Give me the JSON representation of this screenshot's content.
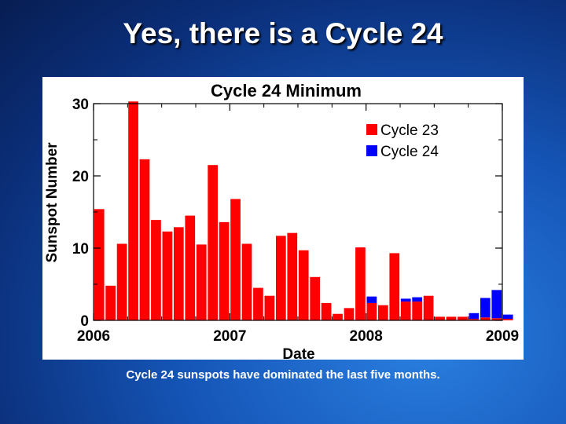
{
  "slide": {
    "title": "Yes, there is a Cycle 24",
    "caption": "Cycle 24 sunspots have dominated the last five months."
  },
  "colors": {
    "cycle23": "#ff0000",
    "cycle24": "#0000ff",
    "axis": "#000000"
  },
  "chart_data": {
    "type": "bar",
    "stacked": true,
    "title": "Cycle 24 Minimum",
    "xlabel": "Date",
    "ylabel": "Sunspot Number",
    "ylim": [
      0,
      30
    ],
    "yticks": [
      0,
      10,
      20,
      30
    ],
    "xlim": [
      2006,
      2009
    ],
    "xticks": [
      "2006",
      "2007",
      "2008",
      "2009"
    ],
    "bar_interval": "monthly",
    "legend": {
      "position": "top-right",
      "entries": [
        "Cycle 23",
        "Cycle 24"
      ]
    },
    "series": [
      {
        "name": "Cycle 23",
        "values": [
          15.4,
          4.8,
          10.6,
          30.3,
          22.3,
          13.9,
          12.3,
          12.9,
          14.5,
          10.5,
          21.5,
          13.6,
          16.8,
          10.6,
          4.5,
          3.4,
          11.7,
          12.1,
          9.7,
          6.0,
          2.4,
          0.9,
          1.7,
          10.1,
          2.4,
          2.1,
          9.3,
          2.6,
          2.6,
          3.4,
          0.5,
          0.5,
          0.5,
          0.2,
          0.4,
          0.3
        ]
      },
      {
        "name": "Cycle 24",
        "values": [
          0,
          0,
          0,
          0,
          0,
          0,
          0,
          0,
          0,
          0,
          0,
          0,
          0,
          0,
          0,
          0,
          0,
          0,
          0,
          0,
          0,
          0,
          0,
          0,
          0.9,
          0,
          0,
          0.4,
          0.6,
          0,
          0,
          0,
          0,
          0.8,
          2.7,
          3.9
        ]
      }
    ],
    "extra_bar": {
      "index": 36,
      "cycle23": 0.2,
      "cycle24": 0.6
    }
  }
}
